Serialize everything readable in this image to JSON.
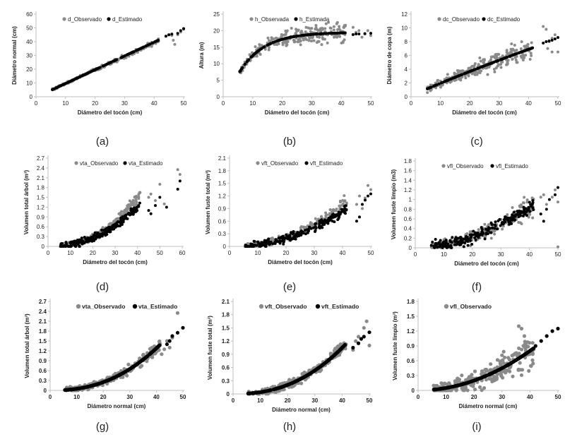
{
  "colors": {
    "observed": "#8a8a8a",
    "estimated": "#000000",
    "axis": "#bfbfbf",
    "text": "#222222"
  },
  "chart_data": [
    {
      "id": "a",
      "caption": "(a)",
      "type": "scatter",
      "xlabel": "Diámetro del tocón (cm)",
      "ylabel": "Diámetro normal (cm)",
      "xlim": [
        0,
        50
      ],
      "xticks": [
        0,
        10,
        20,
        30,
        40,
        50
      ],
      "ylim": [
        0,
        60
      ],
      "yticks": [
        0,
        10,
        20,
        30,
        40,
        50,
        60
      ],
      "legend": [
        "d_Observado",
        "d_Estimado"
      ],
      "obs": {
        "model": "lin",
        "a": -0.2,
        "b": 0.98,
        "noise": 1.3,
        "n": 220
      },
      "est": {
        "model": "lin",
        "a": -0.4,
        "b": 1.0,
        "n": 200
      },
      "outliers_obs": [
        [
          44,
          44
        ],
        [
          45,
          45
        ],
        [
          46,
          44.5
        ],
        [
          46.5,
          41
        ],
        [
          47,
          38
        ],
        [
          48,
          45
        ],
        [
          49,
          47
        ],
        [
          50,
          49
        ]
      ],
      "outliers_est": [
        [
          44,
          44
        ],
        [
          45,
          45
        ],
        [
          46,
          45.5
        ],
        [
          48,
          46
        ],
        [
          49,
          48
        ],
        [
          50,
          49.5
        ]
      ]
    },
    {
      "id": "b",
      "caption": "(b)",
      "type": "scatter",
      "xlabel": "Diámetro del tocón (cm)",
      "ylabel": "Altura (m)",
      "xlim": [
        0,
        50
      ],
      "xticks": [
        0,
        10,
        20,
        30,
        40,
        50
      ],
      "ylim": [
        0,
        25
      ],
      "yticks": [
        0,
        5,
        10,
        15,
        20,
        25
      ],
      "legend": [
        "h_Observada",
        "h_Estimada"
      ],
      "obs": {
        "model": "sat",
        "a": 19.5,
        "b": 0.12,
        "c": 5,
        "d": 4,
        "noise": 2.2,
        "n": 260
      },
      "est": {
        "model": "sat",
        "a": 19.5,
        "b": 0.12,
        "c": 5,
        "d": 4,
        "n": 200
      },
      "outliers_obs": [
        [
          44,
          21
        ],
        [
          45,
          19.5
        ],
        [
          46,
          20
        ],
        [
          47,
          18
        ],
        [
          48,
          19
        ],
        [
          49,
          20
        ],
        [
          50,
          18.5
        ]
      ],
      "outliers_est": [
        [
          44,
          18.8
        ],
        [
          45,
          19
        ],
        [
          46,
          19
        ],
        [
          48,
          19.1
        ],
        [
          50,
          19.2
        ]
      ]
    },
    {
      "id": "c",
      "caption": "(c)",
      "type": "scatter",
      "xlabel": "Diámetro del tocón (cm)",
      "ylabel": "Diámetro de copa (m)",
      "xlim": [
        0,
        50
      ],
      "xticks": [
        0,
        10,
        20,
        30,
        40,
        50
      ],
      "ylim": [
        0,
        12
      ],
      "yticks": [
        0,
        2,
        4,
        6,
        8,
        10,
        12
      ],
      "legend": [
        "dc_Observado",
        "dc_Estimado"
      ],
      "obs": {
        "model": "pow",
        "a": 0.24,
        "b": 0.91,
        "noise": 1.1,
        "n": 260
      },
      "est": {
        "model": "pow",
        "a": 0.24,
        "b": 0.91,
        "n": 200
      },
      "outliers_obs": [
        [
          45,
          10.2
        ],
        [
          46,
          9.8
        ],
        [
          46.5,
          7
        ],
        [
          47,
          8
        ],
        [
          48,
          8.5
        ],
        [
          49,
          9
        ],
        [
          50,
          6.5
        ],
        [
          48,
          6.5
        ]
      ],
      "outliers_est": [
        [
          45,
          7.8
        ],
        [
          46,
          8
        ],
        [
          47,
          8.1
        ],
        [
          48,
          8.2
        ],
        [
          49,
          8.4
        ],
        [
          50,
          8.6
        ]
      ]
    },
    {
      "id": "d",
      "caption": "(d)",
      "type": "scatter",
      "xlabel": "Diámetro del tocón (cm)",
      "ylabel": "Volumen total árbol (m³)",
      "xlim": [
        0,
        60
      ],
      "xticks": [
        0,
        10,
        20,
        30,
        40,
        50,
        60
      ],
      "ylim": [
        0,
        2.7
      ],
      "yticks": [
        0,
        0.3,
        0.6,
        0.9,
        1.2,
        1.5,
        1.8,
        2.1,
        2.4,
        2.7
      ],
      "legend": [
        "vta_Observado",
        "vta_Estimado"
      ],
      "obs": {
        "model": "pow",
        "a": 0.0003,
        "b": 2.3,
        "noise": 0.12,
        "n": 240
      },
      "est": {
        "model": "pow",
        "a": 0.00025,
        "b": 2.3,
        "noise": 0.08,
        "n": 220
      },
      "outliers_obs": [
        [
          45,
          1.5
        ],
        [
          46,
          1.6
        ],
        [
          48,
          1.4
        ],
        [
          50,
          1.9
        ],
        [
          52,
          1.3
        ],
        [
          58,
          2.35
        ],
        [
          59,
          2.2
        ]
      ],
      "outliers_est": [
        [
          45,
          1.1
        ],
        [
          46,
          1.0
        ],
        [
          48,
          1.25
        ],
        [
          50,
          1.5
        ],
        [
          53,
          1.2
        ],
        [
          58,
          1.75
        ],
        [
          59,
          2.0
        ]
      ]
    },
    {
      "id": "e",
      "caption": "(e)",
      "type": "scatter",
      "xlabel": "Diámetro del tocón (cm)",
      "ylabel": "Volumen fuste total (m³)",
      "xlim": [
        0,
        50
      ],
      "xticks": [
        0,
        10,
        20,
        30,
        40,
        50
      ],
      "ylim": [
        0,
        2.1
      ],
      "yticks": [
        0,
        0.3,
        0.6,
        0.9,
        1.2,
        1.5,
        1.8,
        2.1
      ],
      "legend": [
        "vft_Observado",
        "vft_Estimado"
      ],
      "obs": {
        "model": "pow",
        "a": 0.0003,
        "b": 2.2,
        "noise": 0.1,
        "n": 240
      },
      "est": {
        "model": "pow",
        "a": 0.00025,
        "b": 2.2,
        "noise": 0.07,
        "n": 220
      },
      "outliers_obs": [
        [
          45,
          1.0
        ],
        [
          46,
          1.2
        ],
        [
          47,
          0.9
        ],
        [
          48,
          1.15
        ],
        [
          49,
          1.45
        ],
        [
          50,
          1.35
        ]
      ],
      "outliers_est": [
        [
          45,
          0.6
        ],
        [
          46,
          0.7
        ],
        [
          47,
          1.0
        ],
        [
          48,
          1.1
        ],
        [
          49,
          1.2
        ],
        [
          50,
          1.25
        ]
      ]
    },
    {
      "id": "f",
      "caption": "(f)",
      "type": "scatter",
      "xlabel": "Diámetro del tocón (cm)",
      "ylabel": "Volumen fuste limpio (m3)",
      "xlim": [
        0,
        50
      ],
      "xticks": [
        0,
        10,
        20,
        30,
        40,
        50
      ],
      "ylim": [
        0,
        1.8
      ],
      "yticks": [
        0,
        0.2,
        0.4,
        0.6,
        0.8,
        1,
        1.2,
        1.4,
        1.6,
        1.8
      ],
      "legend": [
        "vfl_Observado",
        "vfl_Estimado"
      ],
      "obs": {
        "model": "pow",
        "a": 0.0009,
        "b": 1.85,
        "noise": 0.16,
        "n": 260
      },
      "est": {
        "model": "pow",
        "a": 0.0009,
        "b": 1.85,
        "noise": 0.09,
        "n": 220
      },
      "outliers_obs": [
        [
          44,
          1.05
        ],
        [
          45,
          1.1
        ],
        [
          46,
          0.9
        ],
        [
          48,
          1.05
        ],
        [
          49,
          1.2
        ],
        [
          50,
          0.95
        ],
        [
          50,
          0.02
        ]
      ],
      "outliers_est": [
        [
          44,
          0.7
        ],
        [
          45,
          0.55
        ],
        [
          46,
          0.8
        ],
        [
          47,
          1.0
        ],
        [
          49,
          1.1
        ],
        [
          50,
          1.25
        ]
      ]
    },
    {
      "id": "g",
      "caption": "(g)",
      "type": "scatter",
      "xlabel": "Diámetro normal (cm)",
      "ylabel": "Volumen total árbol (m³)",
      "xlim": [
        0,
        50
      ],
      "xticks": [
        0,
        10,
        20,
        30,
        40,
        50
      ],
      "ylim": [
        0,
        2.7
      ],
      "yticks": [
        0,
        0.3,
        0.6,
        0.9,
        1.2,
        1.5,
        1.8,
        2.1,
        2.4,
        2.7
      ],
      "legend": [
        "vta_Observado",
        "vta_Estimado"
      ],
      "obs": {
        "model": "pow",
        "a": 0.00022,
        "b": 2.35,
        "noise": 0.12,
        "n": 250
      },
      "est": {
        "model": "pow",
        "a": 0.00022,
        "b": 2.35,
        "n": 260
      },
      "outliers_obs": [
        [
          42,
          1.1
        ],
        [
          43,
          1.25
        ],
        [
          44,
          1.5
        ],
        [
          45,
          1.3
        ],
        [
          46,
          1.6
        ],
        [
          48,
          2.35
        ]
      ],
      "outliers_est": [
        [
          44,
          1.4
        ],
        [
          45,
          1.5
        ],
        [
          46,
          1.65
        ],
        [
          48,
          1.75
        ],
        [
          50,
          1.9
        ]
      ]
    },
    {
      "id": "h",
      "caption": "(h)",
      "type": "scatter",
      "xlabel": "Diámetro normal (cm)",
      "ylabel": "Volumen fuste total (m³)",
      "xlim": [
        0,
        50
      ],
      "xticks": [
        0,
        10,
        20,
        30,
        40,
        50
      ],
      "ylim": [
        0,
        2.1
      ],
      "yticks": [
        0,
        0.3,
        0.6,
        0.9,
        1.2,
        1.5,
        1.8,
        2.1
      ],
      "legend": [
        "vft_Observado",
        "vft_Estimado"
      ],
      "obs": {
        "model": "pow",
        "a": 0.00018,
        "b": 2.35,
        "noise": 0.1,
        "n": 250
      },
      "est": {
        "model": "pow",
        "a": 0.00018,
        "b": 2.35,
        "n": 260
      },
      "outliers_obs": [
        [
          44,
          1.0
        ],
        [
          45,
          1.2
        ],
        [
          46,
          1.3
        ],
        [
          48,
          1.5
        ],
        [
          49,
          1.65
        ],
        [
          50,
          1.1
        ]
      ],
      "outliers_est": [
        [
          44,
          1.05
        ],
        [
          46,
          1.15
        ],
        [
          47,
          1.25
        ],
        [
          48,
          1.3
        ],
        [
          50,
          1.4
        ]
      ]
    },
    {
      "id": "i",
      "caption": "(i)",
      "type": "scatter",
      "xlabel": "Diámetro normal (cm)",
      "ylabel": "Volumen fuste limpio (m³)",
      "xlim": [
        0,
        50
      ],
      "xticks": [
        0,
        10,
        20,
        30,
        40,
        50
      ],
      "ylim": [
        0,
        1.8
      ],
      "yticks": [
        0,
        0.3,
        0.6,
        0.9,
        1.2,
        1.5,
        1.8
      ],
      "legend": [
        "vfl_Observado"
      ],
      "obs": {
        "model": "pow",
        "a": 0.0005,
        "b": 2.0,
        "noise": 0.22,
        "n": 260
      },
      "est": {
        "model": "pow",
        "a": 0.0005,
        "b": 2.0,
        "n": 260
      },
      "outliers_obs": [
        [
          36,
          1.3
        ],
        [
          37,
          1.25
        ],
        [
          38,
          1.1
        ]
      ],
      "outliers_est": [
        [
          42,
          0.9
        ],
        [
          44,
          1.0
        ],
        [
          46,
          1.1
        ],
        [
          48,
          1.2
        ],
        [
          50,
          1.25
        ]
      ]
    }
  ]
}
